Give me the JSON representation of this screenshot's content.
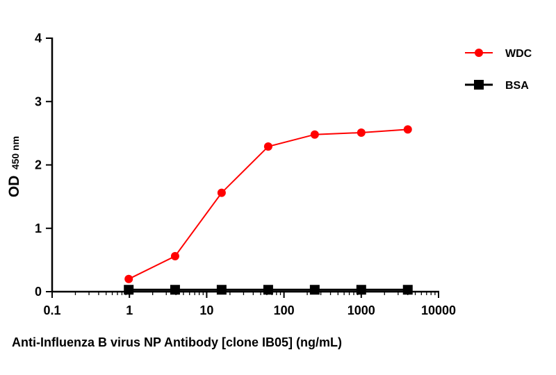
{
  "chart_data": {
    "type": "line",
    "xlabel": "Anti-Influenza B virus NP Antibody [clone IB05] (ng/mL)",
    "ylabel_main": "OD",
    "ylabel_sub": "450 nm",
    "x_scale": "log",
    "xlim": [
      0.1,
      10000
    ],
    "ylim": [
      0,
      4
    ],
    "x_ticks": [
      0.1,
      1,
      10,
      100,
      1000,
      10000
    ],
    "x_tick_labels": [
      "0.1",
      "1",
      "10",
      "100",
      "1000",
      "10000"
    ],
    "y_ticks": [
      0,
      1,
      2,
      3,
      4
    ],
    "y_tick_labels": [
      "0",
      "1",
      "2",
      "3",
      "4"
    ],
    "grid": false,
    "legend_position": "top-right",
    "series": [
      {
        "name": "WDC",
        "color": "#ff0000",
        "marker": "circle",
        "x": [
          0.98,
          3.9,
          15.6,
          62.5,
          250,
          1000,
          4000
        ],
        "y": [
          0.2,
          0.56,
          1.56,
          2.29,
          2.48,
          2.51,
          2.56
        ]
      },
      {
        "name": "BSA",
        "color": "#000000",
        "marker": "square",
        "x": [
          0.98,
          3.9,
          15.6,
          62.5,
          250,
          1000,
          4000
        ],
        "y": [
          0.03,
          0.03,
          0.03,
          0.03,
          0.03,
          0.03,
          0.03
        ]
      }
    ]
  }
}
